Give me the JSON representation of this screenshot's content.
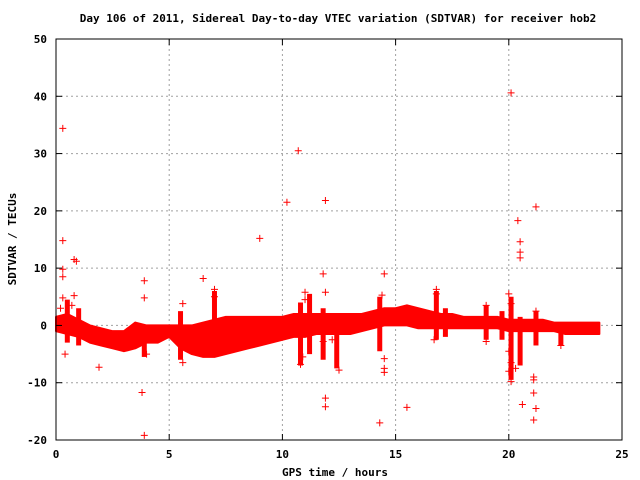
{
  "chart_data": {
    "type": "scatter",
    "title": "Day 106 of 2011, Sidereal Day-to-day VTEC variation (SDTVAR) for receiver hob2",
    "xlabel": "GPS time / hours",
    "ylabel": "SDTVAR / TECUs",
    "xlim": [
      0,
      25
    ],
    "ylim": [
      -20,
      50
    ],
    "xticks": [
      "0",
      "5",
      "10",
      "15",
      "20",
      "25"
    ],
    "yticks": [
      "-20",
      "-10",
      "0",
      "10",
      "20",
      "30",
      "40",
      "50"
    ],
    "grid": true,
    "marker": "+",
    "color": "#ff0000",
    "band": [
      [
        0.0,
        -1.0,
        1.5
      ],
      [
        0.5,
        -1.5,
        2.0
      ],
      [
        1.0,
        -2.0,
        1.0
      ],
      [
        1.5,
        -3.0,
        0.0
      ],
      [
        2.0,
        -3.5,
        -0.5
      ],
      [
        2.5,
        -4.0,
        -1.0
      ],
      [
        3.0,
        -4.5,
        -1.0
      ],
      [
        3.5,
        -4.0,
        0.5
      ],
      [
        4.0,
        -3.0,
        0.0
      ],
      [
        4.5,
        -3.0,
        0.0
      ],
      [
        5.0,
        -2.0,
        0.0
      ],
      [
        5.5,
        -4.0,
        0.0
      ],
      [
        6.0,
        -5.0,
        0.0
      ],
      [
        6.5,
        -5.5,
        0.5
      ],
      [
        7.0,
        -5.5,
        1.0
      ],
      [
        7.5,
        -5.0,
        1.5
      ],
      [
        8.0,
        -4.5,
        1.5
      ],
      [
        8.5,
        -4.0,
        1.5
      ],
      [
        9.0,
        -3.5,
        1.5
      ],
      [
        9.5,
        -3.0,
        1.5
      ],
      [
        10.0,
        -2.5,
        1.5
      ],
      [
        10.5,
        -2.0,
        2.0
      ],
      [
        11.0,
        -2.0,
        2.0
      ],
      [
        11.5,
        -1.5,
        2.0
      ],
      [
        12.0,
        -1.5,
        2.0
      ],
      [
        12.5,
        -1.5,
        2.0
      ],
      [
        13.0,
        -1.5,
        2.0
      ],
      [
        13.5,
        -1.0,
        2.0
      ],
      [
        14.0,
        -0.5,
        2.5
      ],
      [
        14.5,
        0.0,
        3.0
      ],
      [
        15.0,
        0.0,
        3.0
      ],
      [
        15.5,
        0.0,
        3.5
      ],
      [
        16.0,
        -0.5,
        3.0
      ],
      [
        16.5,
        -0.5,
        2.5
      ],
      [
        17.0,
        -0.5,
        2.0
      ],
      [
        17.5,
        -0.5,
        2.0
      ],
      [
        18.0,
        -0.5,
        1.5
      ],
      [
        18.5,
        -0.5,
        1.5
      ],
      [
        19.0,
        -0.5,
        1.5
      ],
      [
        19.5,
        -0.5,
        1.5
      ],
      [
        20.0,
        -1.0,
        1.0
      ],
      [
        20.5,
        -1.0,
        1.0
      ],
      [
        21.0,
        -1.0,
        1.0
      ],
      [
        21.5,
        -1.0,
        1.0
      ],
      [
        22.0,
        -1.0,
        0.5
      ],
      [
        22.5,
        -1.5,
        0.5
      ],
      [
        23.0,
        -1.5,
        0.5
      ],
      [
        23.5,
        -1.5,
        0.5
      ],
      [
        24.0,
        -1.5,
        0.5
      ]
    ],
    "points": [
      [
        0.3,
        34.4
      ],
      [
        0.3,
        14.8
      ],
      [
        0.3,
        9.8
      ],
      [
        0.3,
        8.5
      ],
      [
        0.3,
        4.8
      ],
      [
        0.2,
        3.0
      ],
      [
        0.4,
        -5.0
      ],
      [
        0.8,
        11.5
      ],
      [
        0.9,
        11.2
      ],
      [
        0.8,
        5.2
      ],
      [
        0.7,
        3.5
      ],
      [
        1.9,
        -7.3
      ],
      [
        3.9,
        7.8
      ],
      [
        3.9,
        4.8
      ],
      [
        3.8,
        -11.7
      ],
      [
        3.9,
        -19.2
      ],
      [
        4.0,
        -5.0
      ],
      [
        5.6,
        3.8
      ],
      [
        5.6,
        -6.5
      ],
      [
        6.5,
        8.2
      ],
      [
        7.0,
        6.3
      ],
      [
        7.0,
        5.0
      ],
      [
        9.0,
        15.2
      ],
      [
        10.2,
        21.5
      ],
      [
        10.7,
        30.5
      ],
      [
        11.0,
        5.8
      ],
      [
        11.0,
        4.5
      ],
      [
        10.8,
        -6.8
      ],
      [
        10.9,
        -5.5
      ],
      [
        11.8,
        9.0
      ],
      [
        11.9,
        21.8
      ],
      [
        11.9,
        5.8
      ],
      [
        11.9,
        -12.7
      ],
      [
        11.9,
        -14.2
      ],
      [
        11.8,
        -2.8
      ],
      [
        12.5,
        -7.8
      ],
      [
        12.2,
        -2.5
      ],
      [
        14.3,
        -17.0
      ],
      [
        14.5,
        9.0
      ],
      [
        14.4,
        5.3
      ],
      [
        14.5,
        -5.8
      ],
      [
        14.5,
        -7.5
      ],
      [
        14.5,
        -8.2
      ],
      [
        15.5,
        -14.3
      ],
      [
        16.8,
        6.3
      ],
      [
        16.8,
        5.5
      ],
      [
        16.7,
        -2.5
      ],
      [
        19.0,
        3.5
      ],
      [
        19.0,
        -2.8
      ],
      [
        20.1,
        40.6
      ],
      [
        20.0,
        5.5
      ],
      [
        20.1,
        3.8
      ],
      [
        20.0,
        -4.5
      ],
      [
        20.1,
        -6.5
      ],
      [
        20.1,
        -9.8
      ],
      [
        20.0,
        -8.0
      ],
      [
        20.4,
        18.3
      ],
      [
        20.5,
        14.6
      ],
      [
        20.5,
        12.8
      ],
      [
        20.5,
        11.8
      ],
      [
        20.3,
        -7.5
      ],
      [
        20.6,
        -13.8
      ],
      [
        21.2,
        20.7
      ],
      [
        21.2,
        2.5
      ],
      [
        21.1,
        -9.0
      ],
      [
        21.1,
        -9.5
      ],
      [
        21.1,
        -11.8
      ],
      [
        21.2,
        -14.5
      ],
      [
        21.1,
        -16.5
      ],
      [
        22.3,
        -3.5
      ]
    ],
    "spikes": [
      [
        0.5,
        -3.0,
        4.5
      ],
      [
        1.0,
        -3.5,
        3.0
      ],
      [
        3.9,
        -5.5,
        0.0
      ],
      [
        5.5,
        -6.0,
        2.5
      ],
      [
        7.0,
        -4.0,
        6.0
      ],
      [
        10.8,
        -7.0,
        4.0
      ],
      [
        11.2,
        -5.0,
        5.5
      ],
      [
        11.8,
        -6.0,
        3.0
      ],
      [
        12.4,
        -7.5,
        1.0
      ],
      [
        14.3,
        -4.5,
        5.0
      ],
      [
        16.8,
        -2.5,
        6.0
      ],
      [
        17.2,
        -2.0,
        3.0
      ],
      [
        19.0,
        -2.5,
        3.5
      ],
      [
        19.7,
        -2.5,
        2.5
      ],
      [
        20.1,
        -9.5,
        5.0
      ],
      [
        20.5,
        -7.0,
        1.5
      ],
      [
        21.2,
        -3.5,
        2.5
      ],
      [
        22.3,
        -3.5,
        0.5
      ]
    ]
  }
}
